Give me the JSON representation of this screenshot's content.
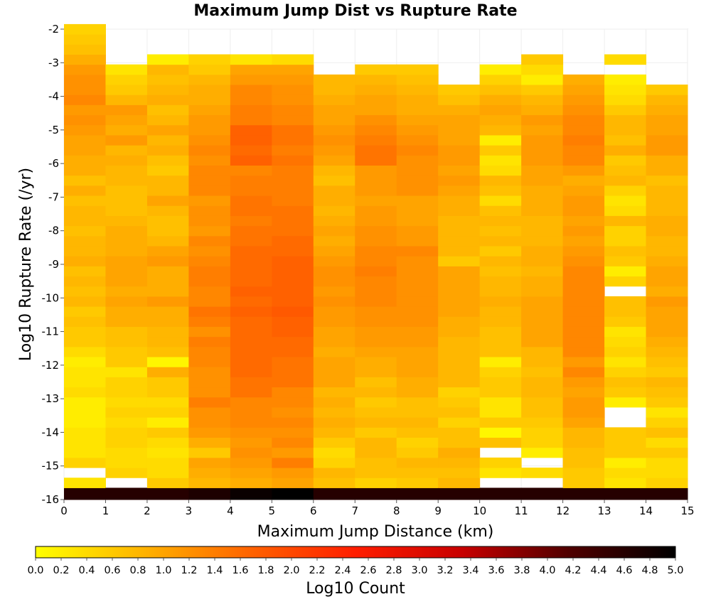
{
  "chart_data": {
    "type": "heatmap",
    "title": "Maximum Jump Dist vs Rupture Rate",
    "xlabel": "Maximum Jump Distance (km)",
    "ylabel": "Log10 Rupture Rate (/yr)",
    "xlim": [
      0,
      15
    ],
    "ylim": [
      -16,
      -2
    ],
    "x_ticks": [
      "0",
      "1",
      "2",
      "3",
      "4",
      "5",
      "6",
      "7",
      "8",
      "9",
      "10",
      "11",
      "12",
      "13",
      "14",
      "15"
    ],
    "y_ticks": [
      "-2",
      "-3",
      "-4",
      "-5",
      "-6",
      "-7",
      "-8",
      "-9",
      "-10",
      "-11",
      "-12",
      "-13",
      "-14",
      "-15",
      "-16"
    ],
    "x_bin_width_km": 1,
    "y_bin_width": 0.3,
    "y_bin_start": -15.95,
    "colorbar": {
      "label": "Log10 Count",
      "range": [
        0,
        5
      ],
      "ticks": [
        "0.0",
        "0.2",
        "0.4",
        "0.6",
        "0.8",
        "1.0",
        "1.2",
        "1.4",
        "1.6",
        "1.8",
        "2.0",
        "2.2",
        "2.4",
        "2.6",
        "2.8",
        "3.0",
        "3.2",
        "3.4",
        "3.6",
        "3.8",
        "4.0",
        "4.2",
        "4.4",
        "4.6",
        "4.8",
        "5.0"
      ],
      "colors": [
        "#ffff00",
        "#ffb400",
        "#ff6400",
        "#ff1e00",
        "#c80000",
        "#500000",
        "#000000"
      ]
    },
    "columns": [
      {
        "x_range": [
          0,
          1
        ],
        "bins_bottom_to_top": [
          4.6,
          0.3,
          null,
          0.5,
          0.3,
          0.3,
          0.3,
          0.2,
          0.2,
          0.2,
          0.4,
          0.3,
          0.3,
          0.2,
          0.4,
          0.6,
          0.6,
          0.7,
          0.6,
          0.8,
          0.7,
          0.8,
          0.7,
          0.9,
          0.8,
          0.8,
          0.7,
          0.8,
          0.8,
          0.7,
          0.9,
          0.7,
          0.9,
          0.9,
          1.0,
          1.0,
          1.1,
          1.2,
          1.1,
          1.3,
          1.2,
          1.2,
          1.1,
          0.9,
          0.7,
          0.6,
          0.5
        ]
      },
      {
        "x_range": [
          1,
          2
        ],
        "bins_bottom_to_top": [
          4.6,
          null,
          0.5,
          0.4,
          0.4,
          0.5,
          0.5,
          0.4,
          0.5,
          0.4,
          0.5,
          0.5,
          0.3,
          0.6,
          0.6,
          0.7,
          0.7,
          0.9,
          0.9,
          1.0,
          0.9,
          1.0,
          1.0,
          1.0,
          0.9,
          0.9,
          0.9,
          0.8,
          0.7,
          0.7,
          0.7,
          0.8,
          0.8,
          0.9,
          0.8,
          1.1,
          0.9,
          1.0,
          1.1,
          0.8,
          0.6,
          0.5,
          0.3
        ]
      },
      {
        "x_range": [
          2,
          3
        ],
        "bins_bottom_to_top": [
          4.6,
          0.6,
          0.4,
          0.4,
          0.3,
          0.4,
          0.6,
          0.2,
          0.5,
          0.4,
          0.6,
          0.6,
          0.9,
          0.1,
          0.7,
          0.8,
          0.8,
          0.9,
          0.9,
          1.1,
          0.9,
          0.9,
          0.9,
          1.1,
          1.0,
          0.8,
          0.7,
          0.7,
          0.8,
          1.0,
          0.8,
          0.8,
          0.6,
          0.7,
          0.9,
          0.8,
          1.0,
          0.8,
          0.7,
          0.9,
          0.8,
          0.7,
          0.8,
          0.2
        ]
      },
      {
        "x_range": [
          3,
          4
        ],
        "bins_bottom_to_top": [
          4.7,
          0.8,
          0.9,
          1.0,
          0.6,
          0.9,
          1.1,
          1.2,
          1.2,
          1.4,
          1.2,
          1.2,
          1.2,
          1.3,
          1.3,
          1.4,
          1.2,
          1.4,
          1.5,
          1.3,
          1.3,
          1.4,
          1.4,
          1.3,
          1.2,
          1.3,
          1.1,
          1.2,
          1.2,
          1.1,
          1.3,
          1.3,
          1.3,
          1.2,
          1.3,
          1.2,
          1.1,
          1.1,
          1.0,
          0.9,
          0.9,
          0.8,
          0.6,
          0.5
        ]
      },
      {
        "x_range": [
          4,
          5
        ],
        "bins_bottom_to_top": [
          4.9,
          0.9,
          1.0,
          1.1,
          1.2,
          1.1,
          1.2,
          1.3,
          1.3,
          1.3,
          1.5,
          1.5,
          1.6,
          1.6,
          1.6,
          1.6,
          1.6,
          1.6,
          1.7,
          1.6,
          1.7,
          1.6,
          1.6,
          1.6,
          1.6,
          1.5,
          1.5,
          1.4,
          1.5,
          1.5,
          1.4,
          1.4,
          1.3,
          1.7,
          1.6,
          1.7,
          1.7,
          1.4,
          1.4,
          1.3,
          1.3,
          1.1,
          1.0,
          0.3
        ]
      },
      {
        "x_range": [
          5,
          6
        ],
        "bins_bottom_to_top": [
          5.0,
          1.0,
          1.1,
          1.4,
          1.1,
          1.3,
          1.2,
          1.3,
          1.2,
          1.3,
          1.3,
          1.5,
          1.5,
          1.5,
          1.6,
          1.6,
          1.7,
          1.7,
          1.8,
          1.7,
          1.7,
          1.7,
          1.7,
          1.7,
          1.6,
          1.6,
          1.5,
          1.5,
          1.5,
          1.4,
          1.4,
          1.4,
          1.4,
          1.5,
          1.4,
          1.5,
          1.5,
          1.3,
          1.3,
          1.2,
          1.2,
          1.1,
          1.0,
          0.4
        ]
      },
      {
        "x_range": [
          6,
          7
        ],
        "bins_bottom_to_top": [
          4.6,
          0.7,
          0.8,
          0.5,
          0.4,
          0.6,
          0.8,
          0.9,
          0.8,
          0.9,
          0.8,
          1.0,
          1.0,
          1.0,
          0.9,
          1.0,
          1.0,
          1.1,
          1.1,
          1.2,
          1.1,
          1.2,
          1.2,
          1.1,
          1.0,
          0.9,
          1.0,
          0.9,
          0.8,
          0.9,
          0.9,
          0.7,
          0.8,
          1.0,
          1.1,
          1.2,
          1.1,
          1.0,
          1.0,
          0.9,
          0.8,
          0.8
        ]
      },
      {
        "x_range": [
          7,
          8
        ],
        "bins_bottom_to_top": [
          4.6,
          0.5,
          0.7,
          0.7,
          0.8,
          0.8,
          0.6,
          0.8,
          0.7,
          0.6,
          0.8,
          0.7,
          0.9,
          0.9,
          1.0,
          1.1,
          1.1,
          1.2,
          1.2,
          1.3,
          1.3,
          1.3,
          1.4,
          1.3,
          1.3,
          1.2,
          1.2,
          1.1,
          1.1,
          1.0,
          1.1,
          1.1,
          1.1,
          1.5,
          1.5,
          1.4,
          1.3,
          1.2,
          1.0,
          1.0,
          0.9,
          0.8,
          0.6
        ]
      },
      {
        "x_range": [
          8,
          9
        ],
        "bins_bottom_to_top": [
          4.6,
          0.6,
          0.7,
          0.8,
          0.6,
          0.5,
          0.7,
          0.8,
          0.7,
          0.7,
          0.9,
          0.9,
          1.0,
          1.0,
          1.0,
          1.1,
          1.1,
          1.2,
          1.2,
          1.2,
          1.2,
          1.2,
          1.2,
          1.2,
          1.3,
          1.1,
          1.1,
          1.0,
          1.0,
          1.0,
          1.2,
          1.2,
          1.2,
          1.2,
          1.3,
          1.2,
          1.1,
          1.0,
          0.9,
          0.9,
          0.8,
          0.7,
          0.6
        ]
      },
      {
        "x_range": [
          9,
          10
        ],
        "bins_bottom_to_top": [
          4.6,
          0.8,
          0.7,
          0.8,
          0.9,
          0.7,
          0.7,
          0.5,
          0.7,
          0.6,
          0.5,
          0.8,
          0.8,
          0.8,
          0.8,
          0.8,
          0.9,
          0.9,
          1.0,
          1.0,
          1.0,
          1.0,
          1.0,
          0.6,
          0.8,
          0.8,
          0.8,
          0.8,
          0.9,
          0.9,
          1.0,
          1.1,
          1.0,
          1.1,
          1.1,
          1.0,
          1.0,
          1.0,
          0.9,
          0.7,
          0.6
        ]
      },
      {
        "x_range": [
          10,
          11
        ],
        "bins_bottom_to_top": [
          4.6,
          null,
          0.3,
          0.5,
          null,
          0.7,
          0.1,
          0.6,
          0.3,
          0.3,
          0.6,
          0.6,
          0.5,
          0.2,
          0.7,
          0.7,
          0.7,
          0.8,
          0.8,
          0.9,
          0.8,
          0.8,
          0.7,
          0.8,
          0.6,
          0.8,
          0.7,
          0.8,
          0.7,
          0.4,
          0.7,
          0.8,
          0.4,
          0.3,
          0.6,
          0.2,
          0.8,
          0.9,
          1.0,
          0.9,
          0.7,
          0.5,
          0.2
        ]
      },
      {
        "x_range": [
          11,
          12
        ],
        "bins_bottom_to_top": [
          4.6,
          null,
          0.4,
          null,
          0.2,
          0.5,
          0.5,
          0.6,
          0.7,
          0.7,
          0.8,
          0.8,
          0.7,
          0.8,
          0.8,
          1.0,
          1.0,
          1.0,
          1.0,
          1.0,
          0.9,
          0.9,
          0.8,
          0.9,
          0.9,
          0.8,
          0.8,
          0.8,
          0.9,
          0.9,
          0.9,
          1.0,
          1.0,
          1.1,
          1.1,
          1.1,
          1.0,
          1.1,
          0.9,
          0.8,
          0.6,
          0.2,
          0.4,
          0.6
        ]
      },
      {
        "x_range": [
          12,
          13
        ],
        "bins_bottom_to_top": [
          4.6,
          0.6,
          0.6,
          0.7,
          0.7,
          0.8,
          0.8,
          1.0,
          1.1,
          1.1,
          1.0,
          1.1,
          1.3,
          1.1,
          1.3,
          1.3,
          1.3,
          1.3,
          1.3,
          1.3,
          1.3,
          1.3,
          1.3,
          1.2,
          1.1,
          1.0,
          1.1,
          1.0,
          1.1,
          1.1,
          1.0,
          0.9,
          1.1,
          1.3,
          1.3,
          1.4,
          1.3,
          1.3,
          1.2,
          1.1,
          1.0,
          0.9
        ]
      },
      {
        "x_range": [
          13,
          14
        ],
        "bins_bottom_to_top": [
          4.6,
          0.3,
          0.4,
          0.2,
          0.6,
          0.6,
          0.6,
          null,
          null,
          0.2,
          0.6,
          0.7,
          0.5,
          0.3,
          0.5,
          0.4,
          0.3,
          0.6,
          0.7,
          0.7,
          null,
          0.5,
          0.2,
          0.6,
          0.7,
          0.5,
          0.5,
          0.8,
          0.4,
          0.3,
          0.5,
          0.8,
          0.7,
          0.6,
          0.9,
          0.7,
          0.8,
          0.8,
          0.6,
          0.4,
          0.3,
          0.2,
          null,
          0.4
        ]
      },
      {
        "x_range": [
          14,
          15
        ],
        "bins_bottom_to_top": [
          4.6,
          0.5,
          0.4,
          0.4,
          0.6,
          0.4,
          0.7,
          0.5,
          0.3,
          0.6,
          0.7,
          0.8,
          0.6,
          0.7,
          0.8,
          0.9,
          1.0,
          1.0,
          1.0,
          1.1,
          0.9,
          1.0,
          1.0,
          0.9,
          0.8,
          0.8,
          0.9,
          0.9,
          0.8,
          0.8,
          0.8,
          0.7,
          0.9,
          0.9,
          1.1,
          1.1,
          1.0,
          1.0,
          0.9,
          0.8,
          0.6
        ]
      }
    ]
  }
}
